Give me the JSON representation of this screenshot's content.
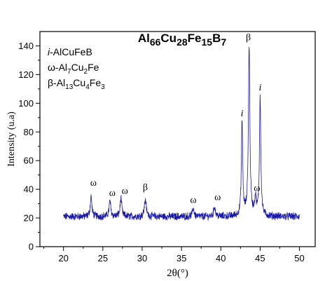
{
  "chart_data": {
    "type": "line",
    "title": {
      "parts": [
        {
          "text": "Al",
          "sub": false
        },
        {
          "text": "66",
          "sub": true
        },
        {
          "text": "Cu",
          "sub": false
        },
        {
          "text": "28",
          "sub": true
        },
        {
          "text": "Fe",
          "sub": false
        },
        {
          "text": "15",
          "sub": true
        },
        {
          "text": "B",
          "sub": false
        },
        {
          "text": "7",
          "sub": true
        }
      ]
    },
    "xlabel": "2θ(°)",
    "ylabel": "Intensity (u.a)",
    "xlim": [
      17,
      52
    ],
    "ylim": [
      0,
      150
    ],
    "xticks": [
      20,
      25,
      30,
      35,
      40,
      45,
      50
    ],
    "yticks": [
      0,
      20,
      40,
      60,
      80,
      100,
      120,
      140
    ],
    "grid": false,
    "legend": {
      "placement": "top-left",
      "entries": [
        {
          "parts": [
            {
              "text": "i",
              "italic": true
            },
            {
              "text": "-AlCuFeB"
            }
          ]
        },
        {
          "parts": [
            {
              "text": "ω-Al"
            },
            {
              "text": "7",
              "sub": true
            },
            {
              "text": "Cu"
            },
            {
              "text": "2",
              "sub": true
            },
            {
              "text": "Fe"
            }
          ]
        },
        {
          "parts": [
            {
              "text": "β-Al"
            },
            {
              "text": "13",
              "sub": true
            },
            {
              "text": "Cu"
            },
            {
              "text": "4",
              "sub": true
            },
            {
              "text": "Fe"
            },
            {
              "text": "3",
              "sub": true
            }
          ]
        }
      ]
    },
    "series": [
      {
        "color": "#1a1aa8",
        "baseline": 21,
        "x_range": [
          20,
          50
        ],
        "peaks": [
          {
            "x": 23.5,
            "y": 35,
            "width": 0.12
          },
          {
            "x": 25.9,
            "y": 32,
            "width": 0.12
          },
          {
            "x": 27.3,
            "y": 34,
            "width": 0.12
          },
          {
            "x": 30.4,
            "y": 33,
            "width": 0.14
          },
          {
            "x": 36.5,
            "y": 27,
            "width": 0.12
          },
          {
            "x": 39.2,
            "y": 28,
            "width": 0.12
          },
          {
            "x": 42.7,
            "y": 87,
            "width": 0.1
          },
          {
            "x": 43.6,
            "y": 140,
            "width": 0.11
          },
          {
            "x": 44.4,
            "y": 33,
            "width": 0.12
          },
          {
            "x": 45.0,
            "y": 105,
            "width": 0.1
          }
        ]
      }
    ],
    "annotations": [
      {
        "text": "ω",
        "x": 23.8,
        "y": 39.5,
        "italic": false
      },
      {
        "text": "ω",
        "x": 26.2,
        "y": 32.5,
        "italic": false
      },
      {
        "text": "ω",
        "x": 27.8,
        "y": 34,
        "italic": false
      },
      {
        "text": "β",
        "x": 30.4,
        "y": 36.5,
        "italic": false
      },
      {
        "text": "ω",
        "x": 36.5,
        "y": 27.5,
        "italic": false
      },
      {
        "text": "ω",
        "x": 39.6,
        "y": 29.5,
        "italic": false
      },
      {
        "text": "i",
        "x": 42.7,
        "y": 88,
        "italic": true
      },
      {
        "text": "β",
        "x": 43.5,
        "y": 141,
        "italic": false
      },
      {
        "text": "ω",
        "x": 44.6,
        "y": 36,
        "italic": false
      },
      {
        "text": "i",
        "x": 45.0,
        "y": 106,
        "italic": true
      }
    ]
  }
}
